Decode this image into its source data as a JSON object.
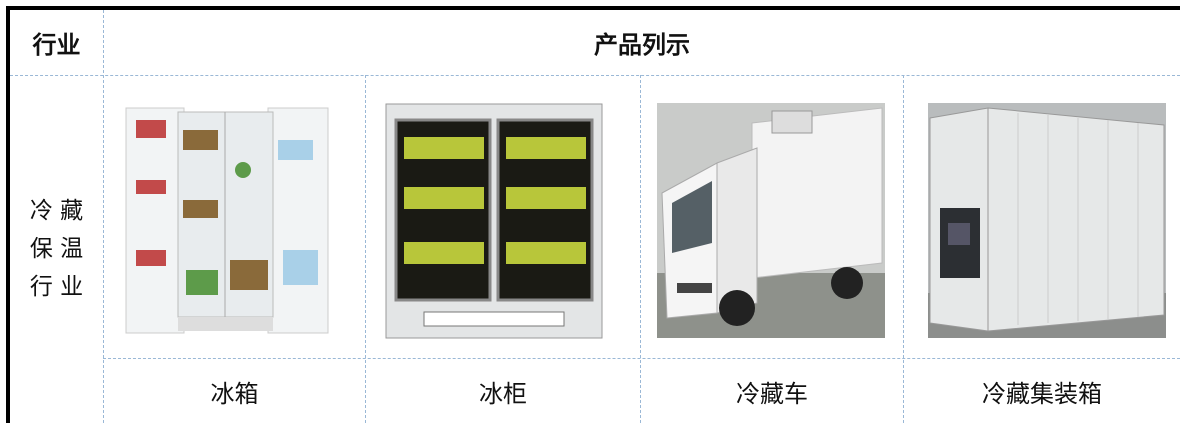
{
  "table": {
    "header": [
      "行业",
      "产品列示"
    ],
    "row_label_lines": [
      "冷 藏",
      "保 温",
      "行 业"
    ],
    "products": [
      "冰箱",
      "冰柜",
      "冷藏车",
      "冷藏集装箱"
    ]
  }
}
